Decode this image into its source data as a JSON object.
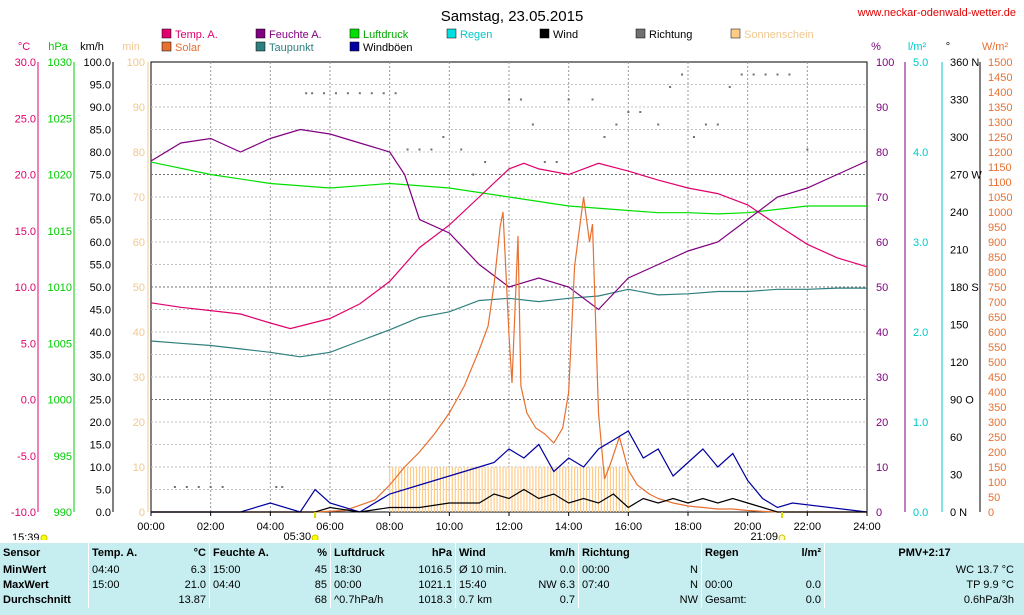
{
  "site_label": "www.neckar-odenwald-wetter.de",
  "chart_data": {
    "type": "line",
    "title": "Samstag, 23.05.2015",
    "x_ticks": [
      "00:00",
      "02:00",
      "04:00",
      "06:00",
      "08:00",
      "10:00",
      "12:00",
      "14:00",
      "16:00",
      "18:00",
      "20:00",
      "22:00",
      "24:00"
    ],
    "xlim_hours": [
      0,
      24
    ],
    "grid": true,
    "legend": [
      {
        "name": "Temp. A.",
        "color": "#e0006e"
      },
      {
        "name": "Feuchte A.",
        "color": "#800080"
      },
      {
        "name": "Luftdruck",
        "color": "#00e000"
      },
      {
        "name": "Regen",
        "color": "#00e0e0"
      },
      {
        "name": "Wind",
        "color": "#000000"
      },
      {
        "name": "Richtung",
        "color": "#707070"
      },
      {
        "name": "Sonnenschein",
        "color": "#ffcc88"
      },
      {
        "name": "Solar",
        "color": "#e87030"
      },
      {
        "name": "Taupunkt",
        "color": "#2f7f7f"
      },
      {
        "name": "Windböen",
        "color": "#0000a0"
      }
    ],
    "axes": {
      "temp": {
        "unit": "°C",
        "color": "#e0006e",
        "ticks": [
          "30.0",
          "25.0",
          "20.0",
          "15.0",
          "10.0",
          "5.0",
          "0.0",
          "-5.0",
          "-10.0"
        ],
        "ylim": [
          -10,
          30
        ]
      },
      "press": {
        "unit": "hPa",
        "color": "#00cc00",
        "ticks": [
          "1030",
          "1025",
          "1020",
          "1015",
          "1010",
          "1005",
          "1000",
          "995",
          "990"
        ],
        "ylim": [
          990,
          1030
        ]
      },
      "wind": {
        "unit": "km/h",
        "color": "#000000",
        "ticks": [
          "100.0",
          "95.0",
          "90.0",
          "85.0",
          "80.0",
          "75.0",
          "70.0",
          "65.0",
          "60.0",
          "55.0",
          "50.0",
          "45.0",
          "40.0",
          "35.0",
          "30.0",
          "25.0",
          "20.0",
          "15.0",
          "10.0",
          "5.0",
          "0.0"
        ],
        "ylim": [
          0,
          100
        ]
      },
      "sun": {
        "unit": "min",
        "color": "#f0c890",
        "ticks": [
          "100",
          "90",
          "80",
          "70",
          "60",
          "50",
          "40",
          "30",
          "20",
          "10",
          "0"
        ],
        "ylim": [
          0,
          100
        ]
      },
      "hum": {
        "unit": "%",
        "color": "#800080",
        "ticks": [
          "100",
          "90",
          "80",
          "70",
          "60",
          "50",
          "40",
          "30",
          "20",
          "10",
          "0"
        ],
        "ylim": [
          0,
          100
        ]
      },
      "rain": {
        "unit": "l/m²",
        "color": "#00c8c8",
        "ticks": [
          "5.0",
          "4.0",
          "3.0",
          "2.0",
          "1.0",
          "0.0"
        ],
        "ylim": [
          0,
          5
        ]
      },
      "dir": {
        "unit": "°",
        "color": "#000000",
        "ticks": [
          "360 N",
          "330",
          "300",
          "270 W",
          "240",
          "210",
          "180 S",
          "150",
          "120",
          "90 O",
          "60",
          "30",
          "0 N"
        ],
        "ylim": [
          0,
          360
        ]
      },
      "solar": {
        "unit": "W/m²",
        "color": "#e87030",
        "ticks": [
          "1500",
          "1450",
          "1400",
          "1350",
          "1300",
          "1250",
          "1200",
          "1150",
          "1100",
          "1050",
          "1000",
          "950",
          "900",
          "850",
          "800",
          "750",
          "700",
          "650",
          "600",
          "550",
          "500",
          "450",
          "400",
          "350",
          "300",
          "250",
          "200",
          "150",
          "100",
          "50",
          "0"
        ],
        "ylim": [
          0,
          1500
        ]
      }
    },
    "markers": {
      "sunrise": "05:30",
      "sunset": "21:09",
      "time_left": "15:39"
    },
    "series": [
      {
        "name": "Temp. A.",
        "axis": "temp",
        "x": [
          0,
          1,
          2,
          3,
          4,
          4.67,
          6,
          7,
          8,
          9,
          10,
          11,
          12,
          12.5,
          13,
          14,
          15,
          16,
          17,
          18,
          19,
          20,
          21,
          22,
          23,
          24
        ],
        "y": [
          8.6,
          8.2,
          7.9,
          7.6,
          6.8,
          6.3,
          7.2,
          8.5,
          10.5,
          13.5,
          15.5,
          18,
          20.5,
          21,
          20.5,
          20,
          21,
          20.3,
          19.5,
          18.8,
          18.3,
          17.3,
          15.5,
          13.8,
          12.6,
          11.8
        ]
      },
      {
        "name": "Feuchte A.",
        "axis": "hum",
        "x": [
          0,
          1,
          2,
          3,
          4,
          5,
          6,
          7,
          8,
          8.5,
          9,
          10,
          11,
          12,
          13,
          14,
          15,
          16,
          17,
          18,
          19,
          20,
          21,
          22,
          23,
          24
        ],
        "y": [
          78,
          82,
          83,
          80,
          83,
          85,
          84,
          82,
          80,
          75,
          65,
          62,
          55,
          50,
          52,
          50,
          45,
          52,
          55,
          58,
          60,
          65,
          70,
          72,
          75,
          78
        ]
      },
      {
        "name": "Luftdruck",
        "axis": "press",
        "x": [
          0,
          2,
          4,
          6,
          8,
          10,
          12,
          14,
          16,
          17,
          18,
          19,
          20,
          22,
          24
        ],
        "y": [
          1021.1,
          1020,
          1019.2,
          1018.8,
          1019.2,
          1018.8,
          1018,
          1017.2,
          1016.8,
          1016.6,
          1016.6,
          1016.5,
          1016.6,
          1017.2,
          1017.2
        ]
      },
      {
        "name": "Taupunkt",
        "axis": "temp",
        "x": [
          0,
          1,
          2,
          3,
          4,
          5,
          6,
          7,
          8,
          9,
          10,
          11,
          12,
          13,
          14,
          15,
          16,
          17,
          18,
          19,
          20,
          21,
          22,
          23,
          24
        ],
        "y": [
          5.2,
          5,
          4.8,
          4.5,
          4.2,
          3.8,
          4.2,
          5.2,
          6.2,
          7.3,
          7.8,
          8.8,
          9,
          8.7,
          9,
          9.2,
          9.8,
          9.3,
          9.4,
          9.6,
          9.6,
          9.8,
          9.8,
          9.9,
          9.9
        ]
      },
      {
        "name": "Solar",
        "axis": "solar",
        "x": [
          0,
          5.5,
          6.5,
          7.5,
          8,
          8.5,
          9,
          9.5,
          10,
          10.5,
          11,
          11.3,
          11.5,
          11.7,
          11.8,
          12,
          12.1,
          12.3,
          12.4,
          12.6,
          12.9,
          13.2,
          13.5,
          13.8,
          14,
          14.2,
          14.5,
          14.7,
          14.8,
          15,
          15.2,
          15.4,
          15.7,
          16,
          16.3,
          16.7,
          17,
          17.5,
          18,
          18.5,
          19,
          19.5,
          20,
          20.5,
          21,
          21.5,
          24
        ],
        "y": [
          0,
          0,
          5,
          40,
          90,
          150,
          200,
          260,
          330,
          420,
          540,
          620,
          760,
          950,
          1000,
          590,
          430,
          920,
          420,
          330,
          280,
          260,
          230,
          280,
          400,
          820,
          1050,
          900,
          960,
          330,
          110,
          160,
          250,
          140,
          90,
          60,
          45,
          30,
          20,
          15,
          10,
          10,
          5,
          2,
          0,
          0,
          0
        ]
      },
      {
        "name": "Wind",
        "axis": "wind",
        "x": [
          0,
          5.5,
          6,
          7,
          8,
          9,
          10,
          11,
          11.5,
          12,
          12.5,
          13,
          13.5,
          14,
          14.5,
          15,
          15.5,
          16,
          16.5,
          17,
          17.5,
          18,
          18.5,
          19,
          19.5,
          20,
          20.5,
          21,
          24
        ],
        "y": [
          0,
          0,
          1,
          0,
          1,
          1,
          2,
          2,
          4,
          3,
          5,
          3,
          4,
          2,
          3,
          2,
          4,
          1,
          3,
          2,
          3,
          2,
          3,
          2,
          3,
          2,
          1,
          0,
          0
        ]
      },
      {
        "name": "Windböen",
        "axis": "wind",
        "x": [
          0,
          1,
          2,
          3,
          4,
          5,
          5.5,
          6,
          7,
          8,
          9,
          10,
          11,
          11.5,
          12,
          12.5,
          13,
          13.5,
          14,
          14.5,
          15,
          15.5,
          16,
          16.5,
          17,
          17.5,
          18,
          18.5,
          19,
          19.5,
          20,
          20.5,
          21,
          21.5,
          24
        ],
        "y": [
          0,
          0,
          0,
          0,
          2,
          0,
          5,
          2,
          0,
          4,
          6,
          8,
          10,
          11,
          14,
          12,
          15,
          9,
          12,
          10,
          14,
          16,
          18,
          12,
          14,
          8,
          11,
          14,
          10,
          13,
          7,
          3,
          1,
          2,
          0
        ]
      },
      {
        "name": "Sonnenschein",
        "axis": "sun",
        "x": [
          8,
          9,
          10,
          11,
          12,
          13,
          14,
          15,
          16
        ],
        "y": [
          10,
          10,
          10,
          10,
          10,
          10,
          10,
          10,
          10
        ]
      },
      {
        "name": "Richtung",
        "axis": "dir",
        "x": [
          0.8,
          1.2,
          1.6,
          2,
          2.4,
          4.2,
          4.4,
          5.2,
          5.4,
          5.8,
          6.2,
          6.6,
          7,
          7.4,
          7.8,
          8.2,
          8.6,
          9,
          9.4,
          9.8,
          10.4,
          10.8,
          11.2,
          12,
          12.4,
          12.8,
          13.2,
          13.6,
          14,
          14.8,
          15.2,
          15.6,
          16,
          16.4,
          17,
          17.4,
          17.8,
          18.2,
          18.6,
          19,
          19.4,
          19.8,
          20.2,
          20.6,
          21,
          21.4,
          22
        ],
        "y": [
          20,
          20,
          20,
          20,
          20,
          20,
          20,
          335,
          335,
          335,
          335,
          335,
          335,
          335,
          335,
          335,
          290,
          290,
          290,
          300,
          290,
          270,
          280,
          330,
          330,
          310,
          280,
          280,
          330,
          330,
          300,
          310,
          320,
          320,
          310,
          340,
          350,
          300,
          310,
          310,
          340,
          350,
          350,
          350,
          350,
          350,
          290
        ]
      }
    ]
  },
  "footer": {
    "header": {
      "sensor": "Sensor",
      "temp": "Temp. A.",
      "temp_unit": "°C",
      "hum": "Feuchte A.",
      "hum_unit": "%",
      "press": "Luftdruck",
      "press_unit": "hPa",
      "wind": "Wind",
      "wind_unit": "km/h",
      "dir": "Richtung",
      "rain": "Regen",
      "rain_unit": "l/m²",
      "pmv": "PMV+2:17"
    },
    "rows": [
      {
        "label": "MinWert",
        "temp_time": "04:40",
        "temp_val": "6.3",
        "hum_time": "15:00",
        "hum_val": "45",
        "press_time": "18:30",
        "press_val": "1016.5",
        "wind_desc": "Ø 10 min.",
        "wind_val": "0.0",
        "dir_time": "00:00",
        "dir_val": "N",
        "rain_time": "",
        "rain_val": "",
        "extra": "WC 13.7 °C"
      },
      {
        "label": "MaxWert",
        "temp_time": "15:00",
        "temp_val": "21.0",
        "hum_time": "04:40",
        "hum_val": "85",
        "press_time": "00:00",
        "press_val": "1021.1",
        "wind_desc": "15:40",
        "wind_dir": "NW 6.3",
        "dir_time": "07:40",
        "dir_val": "N",
        "rain_time": "00:00",
        "rain_val": "0.0",
        "extra": "TP 9.9 °C"
      },
      {
        "label": "Durchschnitt",
        "temp_time": "",
        "temp_val": "13.87",
        "hum_time": "",
        "hum_val": "68",
        "press_time": "^0.7hPa/h",
        "press_val": "1018.3",
        "wind_desc": "0.7 km",
        "wind_val": "0.7",
        "dir_time": "",
        "dir_val": "NW",
        "rain_time": "Gesamt:",
        "rain_val": "0.0",
        "extra": "0.6hPa/3h"
      }
    ]
  }
}
